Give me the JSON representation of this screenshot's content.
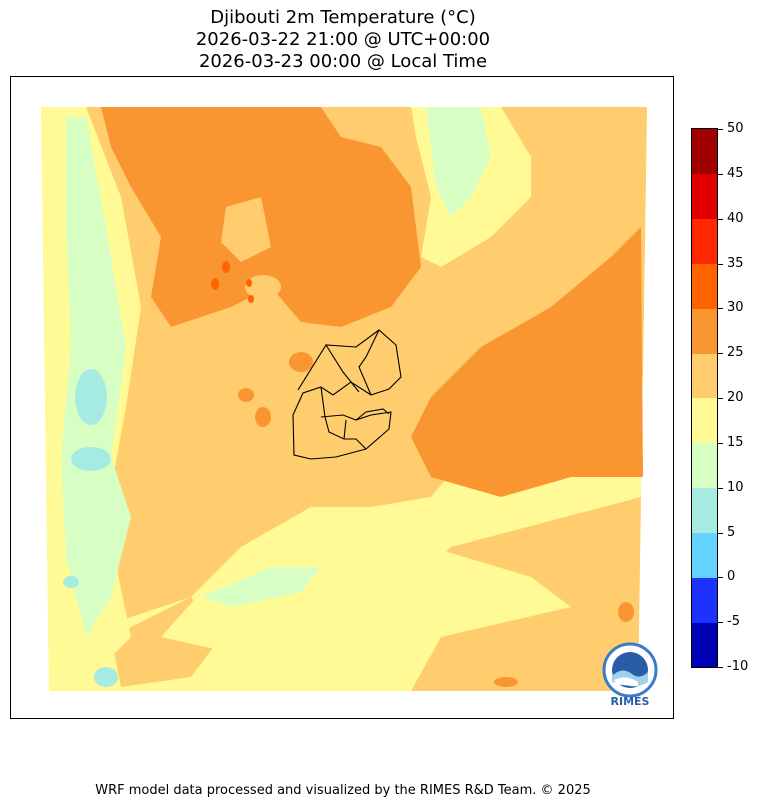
{
  "map": {
    "title_line1": "Djibouti 2m Temperature (°C)",
    "title_line2": "2026-03-22 21:00 @ UTC+00:00",
    "title_line3": "2026-03-23 00:00 @ Local Time",
    "variable": "2m Temperature",
    "units": "°C",
    "region": "Djibouti"
  },
  "colorbar": {
    "bounds": [
      -10,
      -5,
      0,
      5,
      10,
      15,
      20,
      25,
      30,
      35,
      40,
      45,
      50
    ],
    "colors": [
      "#0000b4",
      "#1e32ff",
      "#64d2ff",
      "#a5ebe1",
      "#d7ffc3",
      "#fffa96",
      "#ffcd6e",
      "#fa9632",
      "#ff6400",
      "#ff2800",
      "#e10000",
      "#a00000"
    ]
  },
  "logo": {
    "text": "RIMES"
  },
  "footer": {
    "text": "WRF model data processed and visualized by the RIMES R&D Team. © 2025"
  }
}
